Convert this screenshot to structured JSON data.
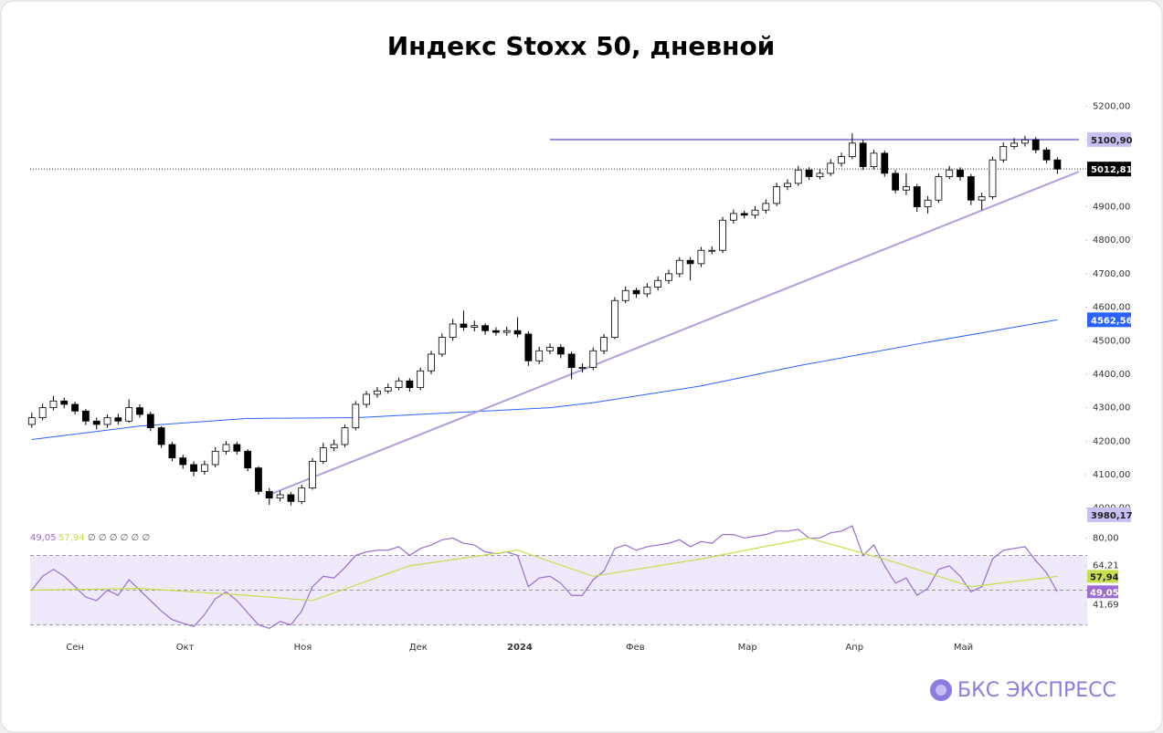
{
  "brand": "БКС ЭКСПРЕСС",
  "chart_data": [
    {
      "type": "candlestick",
      "title": "Индекс Stoxx 50, дневной",
      "up_color": "#ffffff",
      "down_color": "#000000",
      "xlim": [
        -1,
        97
      ],
      "ylim": [
        3950,
        5245
      ],
      "yticks": [
        {
          "value": 4000,
          "label": "4000,00"
        },
        {
          "value": 4100,
          "label": "4100,00"
        },
        {
          "value": 4200,
          "label": "4200,00"
        },
        {
          "value": 4300,
          "label": "4300,00"
        },
        {
          "value": 4400,
          "label": "4400,00"
        },
        {
          "value": 4500,
          "label": "4500,00"
        },
        {
          "value": 4600,
          "label": "4600,00"
        },
        {
          "value": 4700,
          "label": "4700,00"
        },
        {
          "value": 4800,
          "label": "4800,00"
        },
        {
          "value": 4900,
          "label": "4900,00"
        },
        {
          "value": 5000,
          "label": "5000,00"
        },
        {
          "value": 5100,
          "label": "5100,00"
        },
        {
          "value": 5200,
          "label": "5200,00"
        }
      ],
      "open": [
        4250,
        4270,
        4300,
        4320,
        4310,
        4290,
        4260,
        4250,
        4270,
        4260,
        4300,
        4280,
        4240,
        4190,
        4150,
        4130,
        4110,
        4130,
        4170,
        4190,
        4170,
        4120,
        4050,
        4030,
        4040,
        4020,
        4060,
        4140,
        4180,
        4190,
        4240,
        4310,
        4340,
        4350,
        4360,
        4380,
        4360,
        4410,
        4460,
        4510,
        4550,
        4540,
        4545,
        4530,
        4525,
        4530,
        4520,
        4440,
        4470,
        4480,
        4460,
        4420,
        4420,
        4470,
        4510,
        4620,
        4650,
        4640,
        4660,
        4680,
        4700,
        4740,
        4730,
        4770,
        4770,
        4860,
        4880,
        4875,
        4890,
        4910,
        4960,
        4970,
        5010,
        4990,
        5000,
        5030,
        5050,
        5090,
        5020,
        5060,
        5000,
        4950,
        4960,
        4900,
        4920,
        4990,
        5010,
        4990,
        4920,
        4930,
        5040,
        5080,
        5090,
        5100,
        5070,
        5040
      ],
      "high": [
        4285,
        4312,
        4335,
        4330,
        4318,
        4296,
        4270,
        4280,
        4282,
        4325,
        4310,
        4288,
        4245,
        4198,
        4160,
        4140,
        4142,
        4182,
        4200,
        4198,
        4176,
        4125,
        4060,
        4052,
        4048,
        4070,
        4150,
        4195,
        4205,
        4250,
        4320,
        4350,
        4362,
        4372,
        4390,
        4388,
        4420,
        4470,
        4522,
        4565,
        4590,
        4560,
        4552,
        4540,
        4542,
        4570,
        4528,
        4482,
        4492,
        4490,
        4468,
        4432,
        4480,
        4520,
        4630,
        4662,
        4658,
        4672,
        4692,
        4712,
        4750,
        4750,
        4780,
        4782,
        4870,
        4892,
        4888,
        4902,
        4922,
        4972,
        4982,
        5022,
        5018,
        5012,
        5042,
        5062,
        5120,
        5100,
        5070,
        5068,
        5010,
        5000,
        4968,
        4932,
        5000,
        5022,
        5018,
        4998,
        4942,
        5050,
        5092,
        5105,
        5112,
        5108,
        5078,
        5048
      ],
      "low": [
        4240,
        4262,
        4292,
        4298,
        4280,
        4248,
        4235,
        4240,
        4250,
        4255,
        4270,
        4230,
        4180,
        4140,
        4118,
        4095,
        4100,
        4122,
        4160,
        4160,
        4110,
        4040,
        4010,
        4020,
        4008,
        4012,
        4055,
        4132,
        4170,
        4182,
        4232,
        4300,
        4330,
        4342,
        4352,
        4348,
        4352,
        4400,
        4452,
        4500,
        4530,
        4528,
        4518,
        4515,
        4515,
        4510,
        4425,
        4430,
        4460,
        4448,
        4385,
        4405,
        4412,
        4460,
        4505,
        4612,
        4628,
        4630,
        4650,
        4670,
        4690,
        4680,
        4720,
        4758,
        4762,
        4850,
        4865,
        4865,
        4880,
        4902,
        4950,
        4962,
        4980,
        4982,
        4992,
        5020,
        5042,
        5010,
        5012,
        4990,
        4940,
        4935,
        4885,
        4880,
        4912,
        4982,
        4978,
        4905,
        4890,
        4922,
        5032,
        5072,
        5080,
        5060,
        5030,
        4998
      ],
      "close": [
        4270,
        4300,
        4320,
        4310,
        4290,
        4260,
        4250,
        4270,
        4260,
        4300,
        4280,
        4240,
        4190,
        4150,
        4130,
        4110,
        4130,
        4170,
        4190,
        4170,
        4120,
        4050,
        4030,
        4040,
        4020,
        4060,
        4140,
        4180,
        4190,
        4240,
        4310,
        4340,
        4350,
        4360,
        4380,
        4360,
        4410,
        4460,
        4510,
        4550,
        4540,
        4545,
        4530,
        4525,
        4530,
        4520,
        4440,
        4470,
        4480,
        4460,
        4420,
        4420,
        4470,
        4510,
        4620,
        4650,
        4640,
        4660,
        4680,
        4700,
        4740,
        4730,
        4770,
        4770,
        4860,
        4880,
        4875,
        4890,
        4910,
        4960,
        4970,
        5010,
        4990,
        5000,
        5030,
        5050,
        5090,
        5020,
        5060,
        5000,
        4950,
        4960,
        4900,
        4920,
        4990,
        5010,
        4990,
        4920,
        4930,
        5040,
        5080,
        5090,
        5100,
        5070,
        5040,
        5012.81
      ],
      "moving_average": {
        "color": "#2962ff",
        "x": [
          0,
          10,
          20,
          30,
          48,
          52,
          62,
          71,
          82,
          95
        ],
        "values": [
          4205,
          4245,
          4268,
          4270,
          4300,
          4315,
          4365,
          4425,
          4490,
          4562.56
        ],
        "last": {
          "value": 4562.56,
          "label": "4562,56"
        }
      },
      "resistance": {
        "color": "#9b87d6",
        "x": [
          48,
          97
        ],
        "value": 5100.9,
        "label": "5100,90"
      },
      "trendline": {
        "color": "#b39ddb",
        "x": [
          21.6,
          97
        ],
        "values": [
          4035,
          5005
        ]
      },
      "last_price": {
        "value": 5012.81,
        "label": "5012,81"
      },
      "extra_label": {
        "value": 3980.17,
        "label": "3980,17"
      }
    },
    {
      "type": "line",
      "xlim": [
        -1,
        97
      ],
      "ylim": [
        24,
        86
      ],
      "yticks": [
        {
          "value": 80,
          "label": "80,00"
        },
        {
          "value": 64.21,
          "label": "64,21"
        },
        {
          "value": 41.69,
          "label": "41,69"
        }
      ],
      "levels": [
        70,
        50,
        30
      ],
      "xticks": [
        {
          "value": 4,
          "label": "Сен"
        },
        {
          "value": 14.2,
          "label": "Окт"
        },
        {
          "value": 25.1,
          "label": "Ноя"
        },
        {
          "value": 35.8,
          "label": "Дек"
        },
        {
          "value": 45.2,
          "label": "2024"
        },
        {
          "value": 55.9,
          "label": "Фев"
        },
        {
          "value": 66.3,
          "label": "Мар"
        },
        {
          "value": 76.2,
          "label": "Апр"
        },
        {
          "value": 86.3,
          "label": "Май"
        }
      ],
      "legend_extra": "∅ ∅ ∅ ∅ ∅ ∅",
      "series": [
        {
          "color": "#9c6bd4",
          "last_label": "49,05",
          "values": [
            50,
            58,
            62,
            58,
            52,
            46,
            44,
            50,
            47,
            56,
            50,
            44,
            38,
            33,
            31,
            29,
            36,
            45,
            49,
            44,
            37,
            30,
            28,
            32,
            30,
            38,
            52,
            58,
            57,
            63,
            70,
            72,
            73,
            73,
            75,
            70,
            74,
            76,
            79,
            80,
            77,
            76,
            72,
            71,
            72,
            70,
            52,
            57,
            58,
            54,
            47,
            47,
            56,
            61,
            74,
            76,
            73,
            75,
            76,
            77,
            79,
            75,
            78,
            77,
            82,
            82,
            80,
            81,
            82,
            84,
            84,
            85,
            80,
            80,
            83,
            84,
            87,
            70,
            76,
            64,
            54,
            57,
            47,
            51,
            62,
            64,
            58,
            49,
            52,
            68,
            73,
            74,
            75,
            67,
            60,
            49.05
          ]
        },
        {
          "color": "#c5e04a",
          "last_label": "57,94",
          "x": [
            0,
            10,
            20,
            26,
            35,
            45,
            52,
            62,
            72,
            80,
            87,
            95
          ],
          "values": [
            50,
            51,
            47,
            44,
            64,
            73,
            58,
            68,
            80,
            66,
            52,
            57.94
          ]
        }
      ]
    }
  ]
}
